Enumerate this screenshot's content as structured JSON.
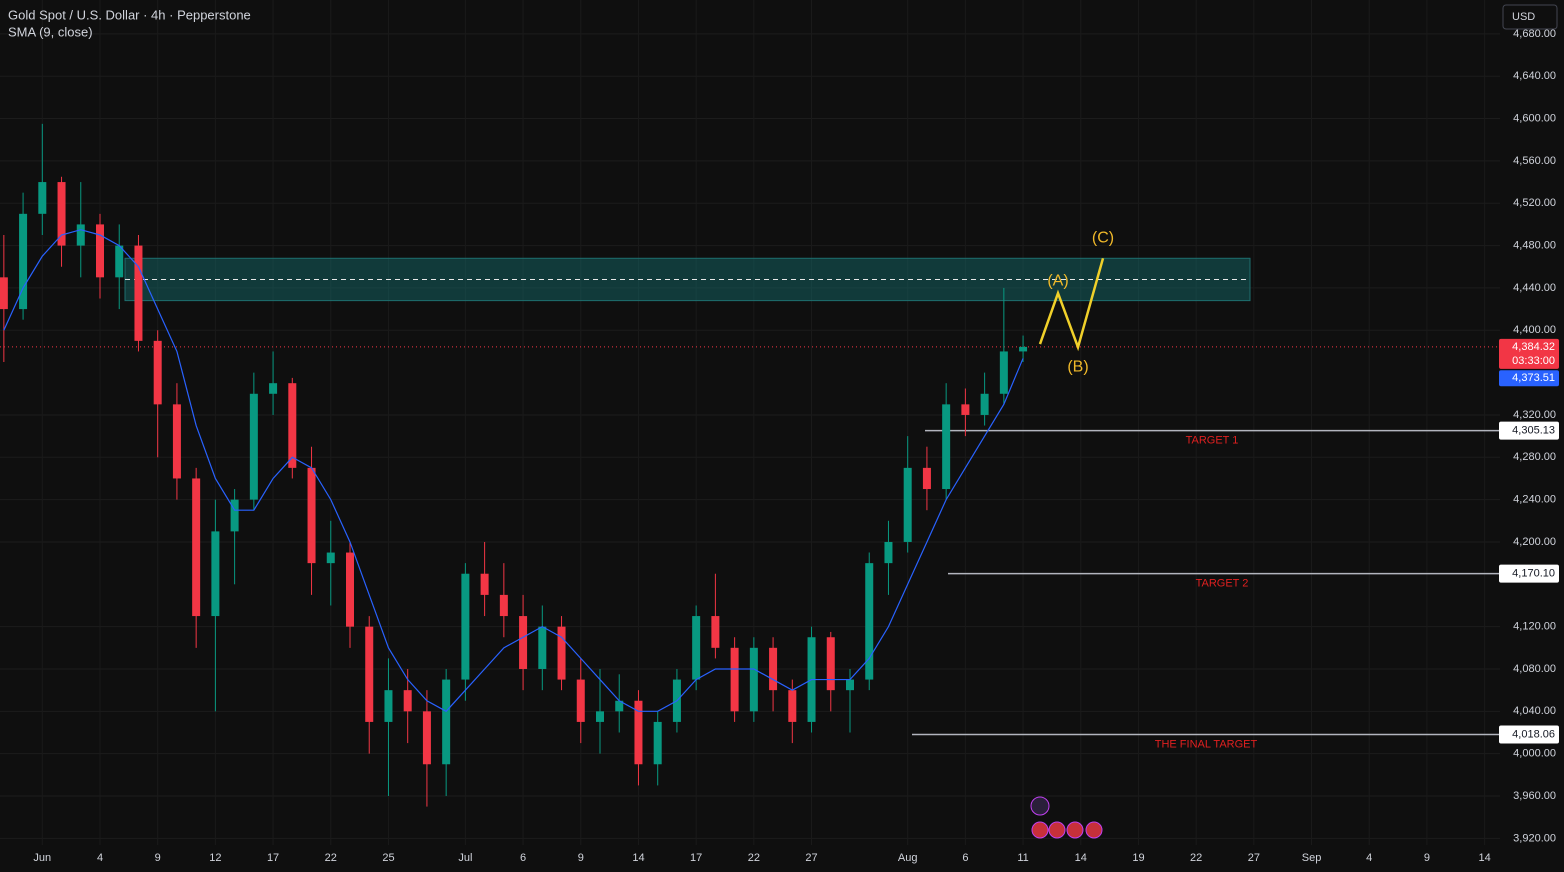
{
  "chart_data": {
    "type": "candlestick",
    "title": "Gold Spot / U.S. Dollar · 4h · Pepperstone",
    "indicator": "SMA (9, close)",
    "currency": "USD",
    "categories": [
      null,
      null,
      "Jun",
      null,
      null,
      "4",
      null,
      null,
      "9",
      null,
      null,
      "12",
      null,
      null,
      "17",
      null,
      null,
      "22",
      null,
      null,
      "25",
      null,
      null,
      null,
      "Jul",
      null,
      null,
      "6",
      null,
      null,
      "9",
      null,
      null,
      "14",
      null,
      null,
      "17",
      null,
      null,
      "22",
      null,
      null,
      "27",
      null,
      null,
      null,
      null,
      "Aug",
      null,
      null,
      "6",
      null,
      null,
      "11",
      null,
      null,
      "14",
      null,
      null,
      "19",
      null,
      null,
      "22",
      null,
      null,
      "27",
      null,
      null,
      "Sep",
      null,
      null,
      "4",
      null,
      null,
      "9",
      null,
      null,
      "14"
    ],
    "open": [
      4450,
      4420,
      4510,
      4540,
      4480,
      4500,
      4450,
      4480,
      4390,
      4330,
      4260,
      4130,
      4210,
      4240,
      4340,
      4350,
      4270,
      4180,
      4190,
      4120,
      4030,
      4060,
      4040,
      3990,
      4070,
      4170,
      4150,
      4130,
      4080,
      4120,
      4070,
      4030,
      4040,
      4050,
      3990,
      4030,
      4070,
      4130,
      4100,
      4040,
      4100,
      4060,
      4030,
      4110,
      4060,
      4070,
      4180,
      4200,
      4270,
      4250,
      4330,
      4320,
      4340,
      4380,
      null,
      null,
      null,
      null,
      null,
      null,
      null,
      null,
      null,
      null,
      null,
      null,
      null,
      null,
      null,
      null,
      null,
      null,
      null,
      null,
      null,
      null,
      null,
      null
    ],
    "high": [
      4490,
      4530,
      4595,
      4545,
      4540,
      4510,
      4500,
      4490,
      4400,
      4350,
      4270,
      4240,
      4250,
      4360,
      4380,
      4355,
      4290,
      4220,
      4200,
      4130,
      4090,
      4080,
      4060,
      4080,
      4180,
      4200,
      4180,
      4150,
      4140,
      4130,
      4090,
      4080,
      4075,
      4060,
      4040,
      4080,
      4140,
      4170,
      4110,
      4110,
      4110,
      4070,
      4120,
      4115,
      4080,
      4190,
      4220,
      4300,
      4290,
      4350,
      4345,
      4360,
      4440,
      4395,
      null,
      null,
      null,
      null,
      null,
      null,
      null,
      null,
      null,
      null,
      null,
      null,
      null,
      null,
      null,
      null,
      null,
      null,
      null,
      null,
      null,
      null,
      null,
      null
    ],
    "low": [
      4370,
      4410,
      4490,
      4460,
      4450,
      4430,
      4420,
      4380,
      4280,
      4240,
      4100,
      4040,
      4160,
      4230,
      4320,
      4260,
      4150,
      4140,
      4100,
      4000,
      3960,
      4010,
      3950,
      3960,
      4050,
      4130,
      4110,
      4060,
      4060,
      4060,
      4010,
      4000,
      4020,
      3970,
      3970,
      4020,
      4060,
      4090,
      4030,
      4030,
      4040,
      4010,
      4020,
      4040,
      4020,
      4060,
      4150,
      4190,
      4230,
      4240,
      4300,
      4310,
      4330,
      4370,
      null,
      null,
      null,
      null,
      null,
      null,
      null,
      null,
      null,
      null,
      null,
      null,
      null,
      null,
      null,
      null,
      null,
      null,
      null,
      null,
      null,
      null,
      null,
      null
    ],
    "close": [
      4420,
      4510,
      4540,
      4480,
      4500,
      4450,
      4480,
      4390,
      4330,
      4260,
      4130,
      4210,
      4240,
      4340,
      4350,
      4270,
      4180,
      4190,
      4120,
      4030,
      4060,
      4040,
      3990,
      4070,
      4170,
      4150,
      4130,
      4080,
      4120,
      4070,
      4030,
      4040,
      4050,
      3990,
      4030,
      4070,
      4130,
      4100,
      4040,
      4100,
      4060,
      4030,
      4110,
      4060,
      4070,
      4180,
      4200,
      4270,
      4250,
      4330,
      4320,
      4340,
      4380,
      4384.32,
      null,
      null,
      null,
      null,
      null,
      null,
      null,
      null,
      null,
      null,
      null,
      null,
      null,
      null,
      null,
      null,
      null,
      null,
      null,
      null,
      null,
      null,
      null,
      null
    ],
    "sma": [
      4400,
      4440,
      4470,
      4490,
      4495,
      4490,
      4480,
      4460,
      4420,
      4380,
      4310,
      4260,
      4230,
      4230,
      4260,
      4280,
      4270,
      4240,
      4200,
      4150,
      4100,
      4070,
      4050,
      4040,
      4060,
      4080,
      4100,
      4110,
      4120,
      4110,
      4090,
      4070,
      4050,
      4040,
      4040,
      4050,
      4070,
      4080,
      4080,
      4080,
      4070,
      4060,
      4070,
      4070,
      4070,
      4090,
      4120,
      4160,
      4200,
      4240,
      4270,
      4300,
      4330,
      4373.51,
      null,
      null,
      null,
      null,
      null,
      null,
      null,
      null,
      null,
      null,
      null,
      null,
      null,
      null,
      null,
      null,
      null,
      null,
      null,
      null,
      null,
      null,
      null,
      null
    ],
    "up_color": "#089981",
    "down_color": "#f23645",
    "sma_color": "#2962ff",
    "ylim": [
      3909,
      4712
    ],
    "yticks": [
      {
        "value": 4680,
        "label": "4,680.00"
      },
      {
        "value": 4640,
        "label": "4,640.00"
      },
      {
        "value": 4600,
        "label": "4,600.00"
      },
      {
        "value": 4560,
        "label": "4,560.00"
      },
      {
        "value": 4520,
        "label": "4,520.00"
      },
      {
        "value": 4480,
        "label": "4,480.00"
      },
      {
        "value": 4440,
        "label": "4,440.00"
      },
      {
        "value": 4400,
        "label": "4,400.00"
      },
      {
        "value": 4320,
        "label": "4,320.00"
      },
      {
        "value": 4280,
        "label": "4,280.00"
      },
      {
        "value": 4240,
        "label": "4,240.00"
      },
      {
        "value": 4200,
        "label": "4,200.00"
      },
      {
        "value": 4120,
        "label": "4,120.00"
      },
      {
        "value": 4080,
        "label": "4,080.00"
      },
      {
        "value": 4040,
        "label": "4,040.00"
      },
      {
        "value": 4000,
        "label": "4,000.00"
      },
      {
        "value": 3960,
        "label": "3,960.00"
      },
      {
        "value": 3920,
        "label": "3,920.00"
      }
    ],
    "grid": true,
    "last_price": {
      "value": 4384.32,
      "label": "4,384.32"
    },
    "countdown": "03:33:00",
    "sma_last": {
      "value": 4373.51,
      "label": "4,373.51"
    },
    "zone": {
      "top": 4468,
      "bottom": 4428,
      "midline": 4448
    },
    "targets": [
      {
        "label": "TARGET 1",
        "price": {
          "value": 4305.13,
          "label": "4,305.13"
        }
      },
      {
        "label": "TARGET 2",
        "price": {
          "value": 4170.1,
          "label": "4,170.10"
        }
      },
      {
        "label": "THE FINAL TARGET",
        "price": {
          "value": 4018.06,
          "label": "4,018.06"
        }
      }
    ],
    "wave": {
      "points": [
        4387,
        4435,
        4384,
        4468
      ],
      "labels": [
        "(A)",
        "(B)",
        "(C)"
      ]
    }
  }
}
